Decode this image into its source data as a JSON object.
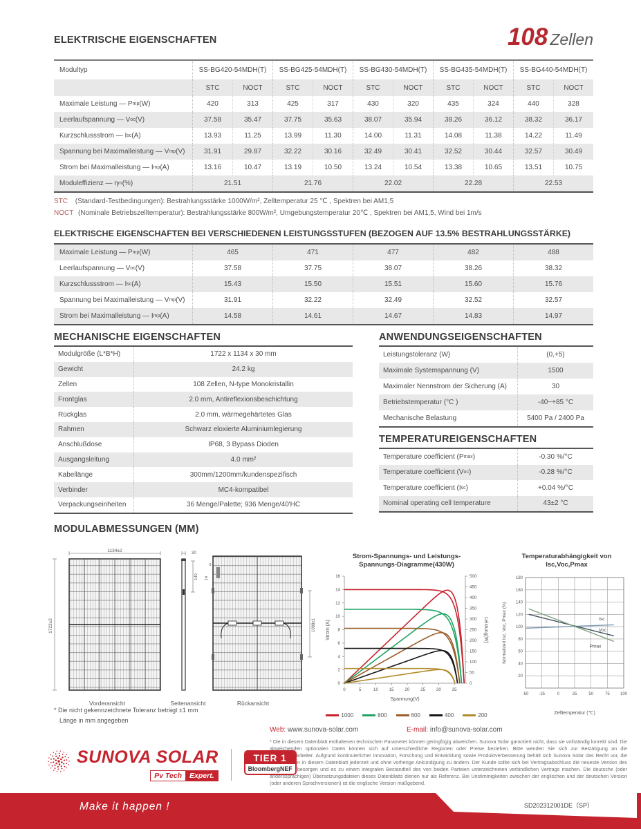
{
  "header": {
    "section1_title": "ELEKTRISCHE EIGENSCHAFTEN",
    "badge_number": "108",
    "badge_label": "Zellen"
  },
  "table1": {
    "modultyp_label": "Modultyp",
    "models": [
      "SS-BG420-54MDH(T)",
      "SS-BG425-54MDH(T)",
      "SS-BG430-54MDH(T)",
      "SS-BG435-54MDH(T)",
      "SS-BG440-54MDH(T)"
    ],
    "condition_headers": [
      "STC",
      "NOCT"
    ],
    "rows": [
      {
        "label": "Maximale Leistung — P",
        "sub": "mp",
        "unit": " (W)",
        "merged": false,
        "values": [
          [
            "420",
            "313"
          ],
          [
            "425",
            "317"
          ],
          [
            "430",
            "320"
          ],
          [
            "435",
            "324"
          ],
          [
            "440",
            "328"
          ]
        ]
      },
      {
        "label": "Leerlaufspannung — V",
        "sub": "oc",
        "unit": " (V)",
        "merged": false,
        "values": [
          [
            "37.58",
            "35.47"
          ],
          [
            "37.75",
            "35.63"
          ],
          [
            "38.07",
            "35.94"
          ],
          [
            "38.26",
            "36.12"
          ],
          [
            "38.32",
            "36.17"
          ]
        ]
      },
      {
        "label": "Kurzschlussstrom — I",
        "sub": "sc",
        "unit": " (A)",
        "merged": false,
        "values": [
          [
            "13.93",
            "11.25"
          ],
          [
            "13.99",
            "11.30"
          ],
          [
            "14.00",
            "11.31"
          ],
          [
            "14.08",
            "11.38"
          ],
          [
            "14.22",
            "11.49"
          ]
        ]
      },
      {
        "label": "Spannung bei Maximalleistung — V",
        "sub": "mp",
        "unit": " (V)",
        "merged": false,
        "values": [
          [
            "31.91",
            "29.87"
          ],
          [
            "32.22",
            "30.16"
          ],
          [
            "32.49",
            "30.41"
          ],
          [
            "32.52",
            "30.44"
          ],
          [
            "32.57",
            "30.49"
          ]
        ]
      },
      {
        "label": "Strom bei Maximalleistung — I",
        "sub": "mp",
        "unit": " (A)",
        "merged": false,
        "values": [
          [
            "13.16",
            "10.47"
          ],
          [
            "13.19",
            "10.50"
          ],
          [
            "13.24",
            "10.54"
          ],
          [
            "13.38",
            "10.65"
          ],
          [
            "13.51",
            "10.75"
          ]
        ]
      },
      {
        "label": "Moduleffizienz — η",
        "sub": "m",
        "unit": " (%)",
        "merged": true,
        "values": [
          "21.51",
          "21.76",
          "22.02",
          "22.28",
          "22.53"
        ]
      }
    ],
    "footnotes": [
      {
        "prefix": "STC",
        "text": "(Standard-Testbedingungen): Bestrahlungsstärke 1000W/m², Zelltemperatur 25 ℃ , Spektren bei AM1,5"
      },
      {
        "prefix": "NOCT",
        "text": "(Nominale Betriebszelltemperatur): Bestrahlungsstärke 800W/m², Umgebungstemperatur 20℃ , Spektren bei AM1,5, Wind bei 1m/s"
      }
    ]
  },
  "table2": {
    "title": "ELEKTRISCHE EIGENSCHAFTEN BEI VERSCHIEDENEN LEISTUNGSSTUFEN (BEZOGEN AUF 13.5% BESTRAHLUNGSSTÄRKE)",
    "rows": [
      {
        "label": "Maximale Leistung — P",
        "sub": "mp",
        "unit": " (W)",
        "values": [
          "465",
          "471",
          "477",
          "482",
          "488"
        ]
      },
      {
        "label": "Leerlaufspannung — V",
        "sub": "oc",
        "unit": " (V)",
        "values": [
          "37.58",
          "37.75",
          "38.07",
          "38.26",
          "38.32"
        ]
      },
      {
        "label": "Kurzschlussstrom — I",
        "sub": "sc",
        "unit": " (A)",
        "values": [
          "15.43",
          "15.50",
          "15.51",
          "15.60",
          "15.76"
        ]
      },
      {
        "label": "Spannung bei Maximalleistung — V",
        "sub": "mp",
        "unit": " (V)",
        "values": [
          "31.91",
          "32.22",
          "32.49",
          "32.52",
          "32.57"
        ]
      },
      {
        "label": "Strom bei Maximalleistung — I",
        "sub": "mp",
        "unit": " (A)",
        "values": [
          "14.58",
          "14.61",
          "14.67",
          "14.83",
          "14.97"
        ]
      }
    ]
  },
  "mechanical": {
    "title": "MECHANISCHE EIGENSCHAFTEN",
    "rows": [
      [
        "Modulgröße (L*B*H)",
        "1722 x 1134 x 30 mm"
      ],
      [
        "Gewicht",
        "24.2 kg"
      ],
      [
        "Zellen",
        "108 Zellen, N-type Monokristallin"
      ],
      [
        "Frontglas",
        "2.0 mm, Antireflexionsbeschichtung"
      ],
      [
        "Rückglas",
        "2.0 mm, wärmegehärtetes Glas"
      ],
      [
        "Rahmen",
        "Schwarz eloxierte Aluminiumlegierung"
      ],
      [
        "Anschlußdose",
        "IP68, 3 Bypass Dioden"
      ],
      [
        "Ausgangsleitung",
        "4.0 mm²"
      ],
      [
        "Kabellänge",
        "300mm/1200mm/kundenspezifisch"
      ],
      [
        "Verbinder",
        "MC4-kompatibel"
      ],
      [
        "Verpackungseinheiten",
        "36 Menge/Palette; 936 Menge/40'HC"
      ]
    ]
  },
  "application": {
    "title": "ANWENDUNGSEIGENSCHAFTEN",
    "rows": [
      [
        "Leistungstoleranz (W)",
        "(0,+5)"
      ],
      [
        "Maximale Systemspannung (V)",
        "1500"
      ],
      [
        "Maximaler Nennstrom der Sicherung (A)",
        "30"
      ],
      [
        "Betriebstemperatur (°C )",
        "-40~+85 °C"
      ],
      [
        "Mechanische Belastung",
        "5400 Pa / 2400 Pa"
      ]
    ]
  },
  "temperature": {
    "title": "TEMPERATUREIGENSCHAFTEN",
    "rows": [
      {
        "label": "Temperature coefficient (P",
        "sub": "max",
        "after": ")",
        "value": "-0.30 %/°C"
      },
      {
        "label": "Temperature coefficient (V",
        "sub": "oc",
        "after": ")",
        "value": "-0.28 %/°C"
      },
      {
        "label": "Temperature coefficient (I",
        "sub": "sc",
        "after": ")",
        "value": "+0.04 %/°C"
      },
      {
        "label": "Nominal operating cell temperature",
        "sub": "",
        "after": "",
        "value": "43±2 °C"
      }
    ]
  },
  "dimensions": {
    "title": "MODULABMESSUNGEN (MM)",
    "front_label": "Vorderansicht",
    "side_label": "Seitenansicht",
    "rear_label": "Rückansicht",
    "front_width": "1134±2",
    "front_height": "1722±2",
    "side_depth": "30",
    "side_hole": "140",
    "rear_hole_a": "9",
    "rear_hole_b": "14",
    "rear_span": "1088±1",
    "footnote1": "* Die nicht gekennzeichnete Toleranz beträgt ±1 mm",
    "footnote2": "Länge in mm angegeben"
  },
  "chart_data": [
    {
      "type": "line",
      "title": "Strom-Spannungs- und Leistungs-Spannungs-Diagramme(430W)",
      "title_lines": [
        "Strom-Spannungs- und Leistungs-",
        "Spannungs-Diagramme(430W)"
      ],
      "xlabel": "Spannung(V)",
      "ylabel_left": "Strom (A)",
      "ylabel_right": "Leistung(W)",
      "xlim": [
        0,
        38.5
      ],
      "xticks": [
        0,
        5,
        10,
        15,
        20,
        25,
        30,
        35
      ],
      "ylim_left": [
        0,
        16
      ],
      "yticks_left": [
        0,
        2,
        4,
        6,
        8,
        10,
        12,
        14,
        16
      ],
      "ylim_right": [
        0,
        500
      ],
      "yticks_right": [
        0,
        50,
        100,
        150,
        200,
        250,
        300,
        350,
        400,
        450,
        500
      ],
      "grid": false,
      "legend_position": "bottom",
      "series": [
        {
          "name": "1000",
          "color": "#c7222c",
          "isc": 14.0,
          "imp": 13.4,
          "vmp": 32.4,
          "voc": 38.1,
          "pmax": 434
        },
        {
          "name": "800",
          "color": "#1fa463",
          "isc": 11.05,
          "imp": 10.5,
          "vmp": 30.8,
          "voc": 37.3,
          "pmax": 323
        },
        {
          "name": "600",
          "color": "#9a5c28",
          "isc": 8.2,
          "imp": 7.8,
          "vmp": 30.2,
          "voc": 36.7,
          "pmax": 236
        },
        {
          "name": "400",
          "color": "#161616",
          "isc": 5.2,
          "imp": 5.05,
          "vmp": 30.0,
          "voc": 36.0,
          "pmax": 151
        },
        {
          "name": "200",
          "color": "#b08c2a",
          "isc": 2.2,
          "imp": 2.12,
          "vmp": 30.0,
          "voc": 35.2,
          "pmax": 64
        }
      ]
    },
    {
      "type": "line",
      "title": "Temperaturabhängigkeit von Isc,Voc,Pmax",
      "title_lines": [
        "Temperaturabhängigkeit von",
        "Isc,Voc,Pmax"
      ],
      "xlabel": "Zelltemperatur (℃)",
      "ylabel": "Normalized Isc, Voc, Pmax (%)",
      "xlim": [
        -50,
        100
      ],
      "xticks": [
        -50,
        -25,
        0,
        25,
        50,
        75,
        100
      ],
      "ylim": [
        0,
        180
      ],
      "yticks": [
        20,
        40,
        60,
        80,
        100,
        120,
        140,
        160,
        180
      ],
      "grid": true,
      "series": [
        {
          "name": "Isc",
          "color": "#7d9bb5",
          "points": [
            [
              -50,
              97.5
            ],
            [
              85,
              103
            ]
          ]
        },
        {
          "name": "Voc",
          "color": "#42525e",
          "points": [
            [
              -45,
              120
            ],
            [
              85,
              85
            ]
          ]
        },
        {
          "name": "Pmax",
          "color": "#83a381",
          "points": [
            [
              -45,
              129
            ],
            [
              85,
              76
            ]
          ]
        }
      ]
    }
  ],
  "footer": {
    "web_label": "Web:",
    "web": "www.sunova-solar.com",
    "email_label": "E-mail:",
    "email": "info@sunova-solar.com",
    "disclaimer": "* Die in diesem Datenblatt enthaltenen technischen Parameter können geringfügig abweichen. Sunova Solar garantiert nicht, dass sie vollständig korrekt sind. Die abweichenden optionalen Daten können sich auf unterschiedliche Regionen oder Preise beziehen. Bitte wenden Sie sich zur Bestätigung an die Vertriebsmitarbeiter. Aufgrund kontinuierlicher Innovation, Forschung und Entwicklung sowie Produktverbesserung behält sich Sunova Solar das Recht vor, die Informationen in diesem Datenblatt jederzeit und ohne vorherige Ankündigung zu ändern. Der Kunde sollte sich bei Vertragsabschluss die neueste Version des Datenblatts besorgen und es zu einem integralen Bestandteil des von beiden Parteien unterzeichneten verbindlichen Vertrags machen. Die deutsche (oder anderssprachigen) Übersetzungsdateien dieses Datenblatts dienen nur als Referenz. Bei Unstimmigkeiten zwischen der englischen und der deutschen Version (oder anderen Sprachversionen) ist die englische Version maßgebend.",
    "brand": "SUNOVA SOLAR",
    "brand_badge1": "Pv Tech",
    "brand_badge2": "Expert.",
    "tier_top": "TIER 1",
    "tier_bottom": "BloombergNEF",
    "slogan": "Make it happen !",
    "doc_code": "SD202312001DE（SP）"
  },
  "colors": {
    "accent_red": "#c5242e",
    "row_gray": "#e8e8e8",
    "text_dark": "#3a3a3a"
  }
}
